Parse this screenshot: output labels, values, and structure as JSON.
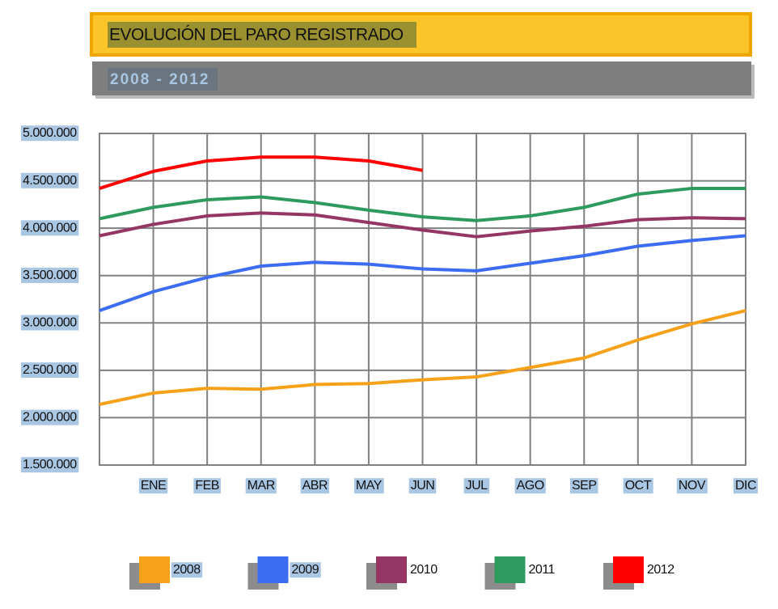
{
  "chart_data": {
    "type": "line",
    "title": "EVOLUCIÓN DEL PARO REGISTRADO",
    "subtitle": "2008 - 2012",
    "categories": [
      null,
      "ENE",
      "FEB",
      "MAR",
      "ABR",
      "MAY",
      "JUN",
      "JUL",
      "AGO",
      "SEP",
      "OCT",
      "NOV",
      "DIC"
    ],
    "series": [
      {
        "name": "2008",
        "color": "#f7a11a",
        "values": [
          2140000,
          2260000,
          2310000,
          2300000,
          2350000,
          2360000,
          2400000,
          2430000,
          2530000,
          2630000,
          2820000,
          2990000,
          3130000
        ]
      },
      {
        "name": "2009",
        "color": "#3b6cf2",
        "values": [
          3130000,
          3330000,
          3480000,
          3600000,
          3640000,
          3620000,
          3570000,
          3550000,
          3630000,
          3710000,
          3810000,
          3870000,
          3920000
        ]
      },
      {
        "name": "2010",
        "color": "#953563",
        "values": [
          3920000,
          4040000,
          4130000,
          4160000,
          4140000,
          4060000,
          3980000,
          3910000,
          3970000,
          4020000,
          4090000,
          4110000,
          4100000
        ]
      },
      {
        "name": "2011",
        "color": "#2e9a5e",
        "values": [
          4100000,
          4220000,
          4300000,
          4330000,
          4270000,
          4190000,
          4120000,
          4080000,
          4130000,
          4220000,
          4360000,
          4420000,
          4420000
        ]
      },
      {
        "name": "2012",
        "color": "#ff0000",
        "values": [
          4420000,
          4600000,
          4710000,
          4750000,
          4750000,
          4710000,
          4610000,
          null,
          null,
          null,
          null,
          null,
          null
        ]
      }
    ],
    "ylim": [
      1500000,
      5000000
    ],
    "yticks": [
      {
        "value": 1500000,
        "label": "1.500.000"
      },
      {
        "value": 2000000,
        "label": "2.000.000"
      },
      {
        "value": 2500000,
        "label": "2.500.000"
      },
      {
        "value": 3000000,
        "label": "3.000.000"
      },
      {
        "value": 3500000,
        "label": "3.500.000"
      },
      {
        "value": 4000000,
        "label": "4.000.000"
      },
      {
        "value": 4500000,
        "label": "4.500.000"
      },
      {
        "value": 5000000,
        "label": "5.000.000"
      }
    ],
    "grid": true
  }
}
